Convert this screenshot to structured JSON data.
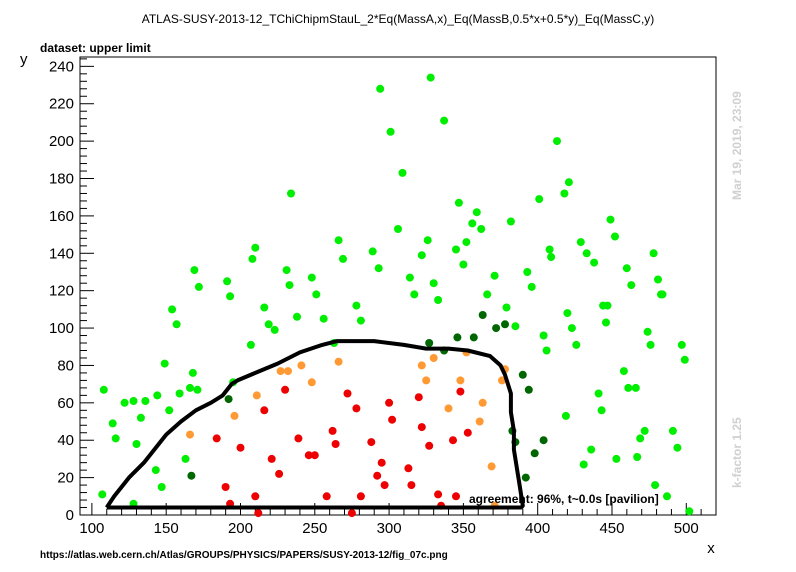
{
  "header": {
    "title": "ATLAS-SUSY-2013-12_TChiChipmStauL_2*Eq(MassA,x)_Eq(MassB,0.5*x+0.5*y)_Eq(MassC,y)",
    "dataset": "dataset: upper limit"
  },
  "side": {
    "timestamp": "Mar 19, 2019, 23:09",
    "kfactor": "k-factor 1.25"
  },
  "footer": {
    "url": "https://atlas.web.cern.ch/Atlas/GROUPS/PHYSICS/PAPERS/SUSY-2013-12/fig_07c.png",
    "agreement": "agreement: 96%, t~0.0s [pavilion]"
  },
  "colors": {
    "bright_green": "#00ee00",
    "dark_green": "#006600",
    "orange": "#ff9933",
    "red": "#ee0000",
    "exclusion_line": "#000000"
  },
  "chart_data": {
    "type": "scatter",
    "xlabel": "x",
    "ylabel": "y",
    "xlim": [
      92,
      520
    ],
    "ylim": [
      0,
      245
    ],
    "xticks": [
      100,
      150,
      200,
      250,
      300,
      350,
      400,
      450,
      500
    ],
    "yticks": [
      0,
      20,
      40,
      60,
      80,
      100,
      120,
      140,
      160,
      180,
      200,
      220,
      240
    ],
    "grid": false,
    "legend": "none",
    "series": [
      {
        "color": "bright_green",
        "points": [
          [
            107,
            11
          ],
          [
            108,
            67
          ],
          [
            114,
            49
          ],
          [
            116,
            41
          ],
          [
            122,
            60
          ],
          [
            128,
            6
          ],
          [
            128,
            61
          ],
          [
            130,
            38
          ],
          [
            133,
            52
          ],
          [
            136,
            61
          ],
          [
            143,
            24
          ],
          [
            144,
            64
          ],
          [
            147,
            15
          ],
          [
            149,
            81
          ],
          [
            152,
            56
          ],
          [
            154,
            110
          ],
          [
            157,
            102
          ],
          [
            159,
            65
          ],
          [
            163,
            30
          ],
          [
            166,
            68
          ],
          [
            168,
            76
          ],
          [
            169,
            131
          ],
          [
            171,
            67
          ],
          [
            172,
            122
          ],
          [
            191,
            125
          ],
          [
            193,
            117
          ],
          [
            195,
            71
          ],
          [
            207,
            91
          ],
          [
            208,
            137
          ],
          [
            210,
            143
          ],
          [
            216,
            111
          ],
          [
            219,
            102
          ],
          [
            223,
            99
          ],
          [
            231,
            131
          ],
          [
            233,
            123
          ],
          [
            234,
            172
          ],
          [
            238,
            106
          ],
          [
            248,
            127
          ],
          [
            251,
            118
          ],
          [
            256,
            105
          ],
          [
            263,
            92
          ],
          [
            266,
            147
          ],
          [
            269,
            137
          ],
          [
            278,
            112
          ],
          [
            281,
            104
          ],
          [
            289,
            141
          ],
          [
            293,
            132
          ],
          [
            294,
            228
          ],
          [
            301,
            205
          ],
          [
            306,
            153
          ],
          [
            309,
            183
          ],
          [
            314,
            127
          ],
          [
            317,
            118
          ],
          [
            322,
            139
          ],
          [
            326,
            147
          ],
          [
            328,
            234
          ],
          [
            330,
            124
          ],
          [
            333,
            115
          ],
          [
            337,
            211
          ],
          [
            345,
            142
          ],
          [
            347,
            167
          ],
          [
            350,
            134
          ],
          [
            352,
            146
          ],
          [
            356,
            156
          ],
          [
            359,
            162
          ],
          [
            362,
            153
          ],
          [
            366,
            118
          ],
          [
            371,
            128
          ],
          [
            379,
            111
          ],
          [
            382,
            157
          ],
          [
            385,
            101
          ],
          [
            393,
            130
          ],
          [
            396,
            122
          ],
          [
            401,
            169
          ],
          [
            404,
            96
          ],
          [
            406,
            88
          ],
          [
            408,
            142
          ],
          [
            409,
            138
          ],
          [
            413,
            200
          ],
          [
            418,
            172
          ],
          [
            419,
            53
          ],
          [
            420,
            108
          ],
          [
            421,
            178
          ],
          [
            423,
            100
          ],
          [
            426,
            91
          ],
          [
            429,
            146
          ],
          [
            431,
            27
          ],
          [
            433,
            140
          ],
          [
            436,
            35
          ],
          [
            438,
            135
          ],
          [
            441,
            65
          ],
          [
            443,
            56
          ],
          [
            444,
            112
          ],
          [
            446,
            103
          ],
          [
            447,
            112
          ],
          [
            449,
            158
          ],
          [
            452,
            149
          ],
          [
            453,
            30
          ],
          [
            458,
            77
          ],
          [
            460,
            132
          ],
          [
            461,
            68
          ],
          [
            463,
            123
          ],
          [
            466,
            68
          ],
          [
            467,
            31
          ],
          [
            469,
            41
          ],
          [
            472,
            45
          ],
          [
            474,
            98
          ],
          [
            476,
            91
          ],
          [
            478,
            140
          ],
          [
            479,
            16
          ],
          [
            481,
            126
          ],
          [
            483,
            118
          ],
          [
            484,
            118
          ],
          [
            487,
            10
          ],
          [
            491,
            45
          ],
          [
            494,
            36
          ],
          [
            497,
            91
          ],
          [
            499,
            83
          ],
          [
            502,
            2
          ]
        ]
      },
      {
        "color": "dark_green",
        "points": [
          [
            167,
            21
          ],
          [
            192,
            62
          ],
          [
            327,
            92
          ],
          [
            337,
            88
          ],
          [
            346,
            95
          ],
          [
            357,
            95
          ],
          [
            363,
            107
          ],
          [
            372,
            100
          ],
          [
            378,
            102
          ],
          [
            383,
            45
          ],
          [
            385,
            39
          ],
          [
            390,
            75
          ],
          [
            392,
            20
          ],
          [
            394,
            67
          ],
          [
            398,
            33
          ],
          [
            404,
            40
          ]
        ]
      },
      {
        "color": "orange",
        "points": [
          [
            166,
            43
          ],
          [
            196,
            53
          ],
          [
            211,
            64
          ],
          [
            227,
            77
          ],
          [
            232,
            77
          ],
          [
            241,
            80
          ],
          [
            248,
            71
          ],
          [
            266,
            82
          ],
          [
            322,
            80
          ],
          [
            325,
            72
          ],
          [
            330,
            84
          ],
          [
            340,
            57
          ],
          [
            348,
            72
          ],
          [
            352,
            87
          ],
          [
            361,
            50
          ],
          [
            363,
            60
          ],
          [
            369,
            26
          ],
          [
            371,
            5
          ],
          [
            376,
            72
          ],
          [
            378,
            78
          ]
        ]
      },
      {
        "color": "red",
        "points": [
          [
            184,
            41
          ],
          [
            190,
            15
          ],
          [
            193,
            6
          ],
          [
            200,
            36
          ],
          [
            210,
            10
          ],
          [
            212,
            1
          ],
          [
            216,
            56
          ],
          [
            221,
            30
          ],
          [
            226,
            22
          ],
          [
            230,
            67
          ],
          [
            239,
            41
          ],
          [
            246,
            32
          ],
          [
            250,
            32
          ],
          [
            258,
            10
          ],
          [
            262,
            45
          ],
          [
            264,
            38
          ],
          [
            272,
            65
          ],
          [
            275,
            1
          ],
          [
            278,
            57
          ],
          [
            281,
            10
          ],
          [
            288,
            39
          ],
          [
            292,
            21
          ],
          [
            295,
            28
          ],
          [
            297,
            16
          ],
          [
            300,
            60
          ],
          [
            302,
            51
          ],
          [
            313,
            25
          ],
          [
            315,
            16
          ],
          [
            320,
            63
          ],
          [
            322,
            47
          ],
          [
            327,
            37
          ],
          [
            333,
            11
          ],
          [
            335,
            5
          ],
          [
            343,
            40
          ],
          [
            345,
            10
          ],
          [
            348,
            66
          ],
          [
            353,
            44
          ]
        ]
      }
    ],
    "exclusion_contour": [
      [
        110,
        4
      ],
      [
        115,
        10
      ],
      [
        125,
        20
      ],
      [
        135,
        28
      ],
      [
        142,
        35
      ],
      [
        150,
        43
      ],
      [
        160,
        50
      ],
      [
        170,
        56
      ],
      [
        180,
        60
      ],
      [
        188,
        64
      ],
      [
        194,
        70
      ],
      [
        198,
        72
      ],
      [
        210,
        76
      ],
      [
        225,
        81
      ],
      [
        240,
        87
      ],
      [
        255,
        91
      ],
      [
        265,
        93
      ],
      [
        290,
        93
      ],
      [
        310,
        91
      ],
      [
        325,
        89
      ],
      [
        340,
        89
      ],
      [
        353,
        88
      ],
      [
        368,
        85
      ],
      [
        375,
        80
      ],
      [
        378,
        75
      ],
      [
        382,
        65
      ],
      [
        382,
        55
      ],
      [
        384,
        45
      ],
      [
        384,
        35
      ],
      [
        386,
        25
      ],
      [
        388,
        15
      ],
      [
        390,
        5
      ],
      [
        389,
        4
      ],
      [
        110,
        4
      ]
    ]
  }
}
